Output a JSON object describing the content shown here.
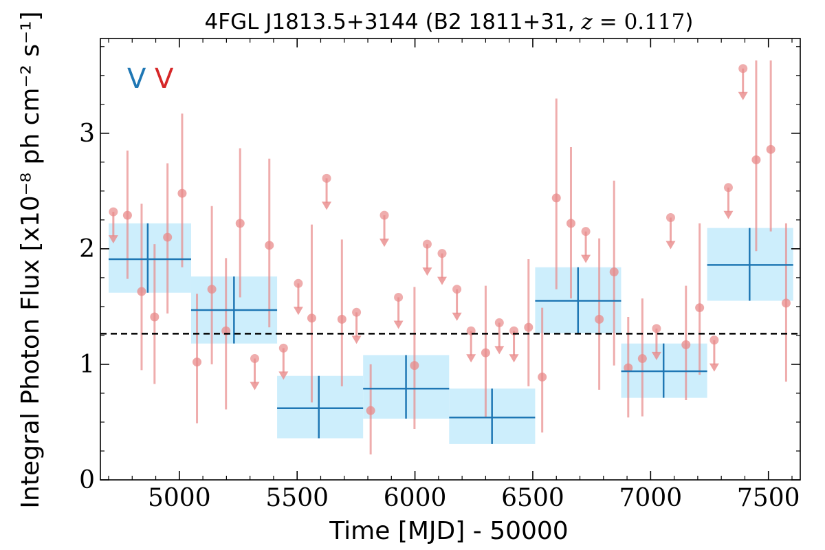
{
  "chart_data": {
    "type": "scatter",
    "title": "4FGL J1813.5+3144 (B2 1811+31, z = 0.117)",
    "title_parts": {
      "prefix": "4FGL J1813.5+3144 (B2 1811+31, ",
      "z_symbol": "z",
      "z_value": " = 0.117",
      "suffix": ")"
    },
    "xlabel": "Time [MJD] - 50000",
    "ylabel": "Integral Photon Flux [x10⁻⁸ ph cm⁻² s⁻¹]",
    "xlim": [
      4665,
      7635
    ],
    "ylim": [
      0,
      3.82
    ],
    "xticks": [
      5000,
      5500,
      6000,
      6500,
      7000,
      7500
    ],
    "yticks": [
      0,
      1,
      2,
      3
    ],
    "xtick_labels": [
      "5000",
      "5500",
      "6000",
      "6500",
      "7000",
      "7500"
    ],
    "ytick_labels": [
      "0",
      "1",
      "2",
      "3"
    ],
    "grid": false,
    "mean_flux": 1.265,
    "variability_flags": [
      {
        "text": "V",
        "color": "#1f77b4"
      },
      {
        "text": "V",
        "color": "#d62728"
      }
    ],
    "colors": {
      "bins": "#1f77b4",
      "bins_fill": "#cdeefc",
      "monthly": "#e88a8a",
      "mean": "#000000"
    },
    "series": [
      {
        "kind": "long-bins",
        "points": [
          {
            "x": 4866,
            "y": 1.91,
            "xlo": 4700,
            "xhi": 5050,
            "ylo": 1.62,
            "yhi": 2.22
          },
          {
            "x": 5232,
            "y": 1.47,
            "xlo": 5050,
            "xhi": 5415,
            "ylo": 1.18,
            "yhi": 1.76
          },
          {
            "x": 5592,
            "y": 0.62,
            "xlo": 5415,
            "xhi": 5780,
            "ylo": 0.36,
            "yhi": 0.9
          },
          {
            "x": 5962,
            "y": 0.79,
            "xlo": 5780,
            "xhi": 6145,
            "ylo": 0.53,
            "yhi": 1.08
          },
          {
            "x": 6327,
            "y": 0.54,
            "xlo": 6145,
            "xhi": 6510,
            "ylo": 0.31,
            "yhi": 0.79
          },
          {
            "x": 6692,
            "y": 1.55,
            "xlo": 6510,
            "xhi": 6875,
            "ylo": 1.27,
            "yhi": 1.84
          },
          {
            "x": 7055,
            "y": 0.94,
            "xlo": 6875,
            "xhi": 7240,
            "ylo": 0.71,
            "yhi": 1.18
          },
          {
            "x": 7420,
            "y": 1.86,
            "xlo": 7240,
            "xhi": 7605,
            "ylo": 1.55,
            "yhi": 2.18
          }
        ]
      },
      {
        "kind": "monthly-detections",
        "points": [
          {
            "x": 4780,
            "y": 2.29,
            "ylo": 1.74,
            "yhi": 2.85
          },
          {
            "x": 4840,
            "y": 1.63,
            "ylo": 0.95,
            "yhi": 2.39
          },
          {
            "x": 4895,
            "y": 1.41,
            "ylo": 0.83,
            "yhi": 2.04
          },
          {
            "x": 4950,
            "y": 2.1,
            "ylo": 1.44,
            "yhi": 2.74
          },
          {
            "x": 5012,
            "y": 2.48,
            "ylo": 1.84,
            "yhi": 3.17
          },
          {
            "x": 5075,
            "y": 1.02,
            "ylo": 0.49,
            "yhi": 1.61
          },
          {
            "x": 5138,
            "y": 1.65,
            "ylo": 1.0,
            "yhi": 2.37
          },
          {
            "x": 5198,
            "y": 1.29,
            "ylo": 0.61,
            "yhi": 1.92
          },
          {
            "x": 5258,
            "y": 2.22,
            "ylo": 1.58,
            "yhi": 2.87
          },
          {
            "x": 5382,
            "y": 2.03,
            "ylo": 1.32,
            "yhi": 2.78
          },
          {
            "x": 5562,
            "y": 1.4,
            "ylo": 0.67,
            "yhi": 2.21
          },
          {
            "x": 5690,
            "y": 1.39,
            "ylo": 0.81,
            "yhi": 2.08
          },
          {
            "x": 5812,
            "y": 0.6,
            "ylo": 0.22,
            "yhi": 1.0
          },
          {
            "x": 5998,
            "y": 0.99,
            "ylo": 0.44,
            "yhi": 1.67
          },
          {
            "x": 6300,
            "y": 1.1,
            "ylo": 0.54,
            "yhi": 1.68
          },
          {
            "x": 6482,
            "y": 1.32,
            "ylo": 0.81,
            "yhi": 1.91
          },
          {
            "x": 6540,
            "y": 0.89,
            "ylo": 0.41,
            "yhi": 1.49
          },
          {
            "x": 6600,
            "y": 2.44,
            "ylo": 1.65,
            "yhi": 3.3
          },
          {
            "x": 6662,
            "y": 2.22,
            "ylo": 1.57,
            "yhi": 2.88
          },
          {
            "x": 6782,
            "y": 1.39,
            "ylo": 0.78,
            "yhi": 2.09
          },
          {
            "x": 6845,
            "y": 1.8,
            "ylo": 0.99,
            "yhi": 2.59
          },
          {
            "x": 6905,
            "y": 0.97,
            "ylo": 0.54,
            "yhi": 1.41
          },
          {
            "x": 6965,
            "y": 1.05,
            "ylo": 0.55,
            "yhi": 1.57
          },
          {
            "x": 7150,
            "y": 1.17,
            "ylo": 0.69,
            "yhi": 1.68
          },
          {
            "x": 7208,
            "y": 1.49,
            "ylo": 0.91,
            "yhi": 2.22
          },
          {
            "x": 7448,
            "y": 2.77,
            "ylo": 1.98,
            "yhi": 3.63
          },
          {
            "x": 7510,
            "y": 2.86,
            "ylo": 2.15,
            "yhi": 3.63
          },
          {
            "x": 7575,
            "y": 1.53,
            "ylo": 0.85,
            "yhi": 2.22
          }
        ]
      },
      {
        "kind": "monthly-upper-limits",
        "points": [
          {
            "x": 4720,
            "y": 2.32
          },
          {
            "x": 5320,
            "y": 1.05
          },
          {
            "x": 5442,
            "y": 1.14
          },
          {
            "x": 5505,
            "y": 1.7
          },
          {
            "x": 5625,
            "y": 2.61
          },
          {
            "x": 5752,
            "y": 1.45
          },
          {
            "x": 5870,
            "y": 2.29
          },
          {
            "x": 5930,
            "y": 1.58
          },
          {
            "x": 6052,
            "y": 2.04
          },
          {
            "x": 6115,
            "y": 1.96
          },
          {
            "x": 6178,
            "y": 1.65
          },
          {
            "x": 6238,
            "y": 1.29
          },
          {
            "x": 6358,
            "y": 1.36
          },
          {
            "x": 6420,
            "y": 1.29
          },
          {
            "x": 6725,
            "y": 2.15
          },
          {
            "x": 7025,
            "y": 1.31
          },
          {
            "x": 7085,
            "y": 2.27
          },
          {
            "x": 7270,
            "y": 1.21
          },
          {
            "x": 7330,
            "y": 2.53
          },
          {
            "x": 7392,
            "y": 3.56
          }
        ]
      }
    ]
  }
}
